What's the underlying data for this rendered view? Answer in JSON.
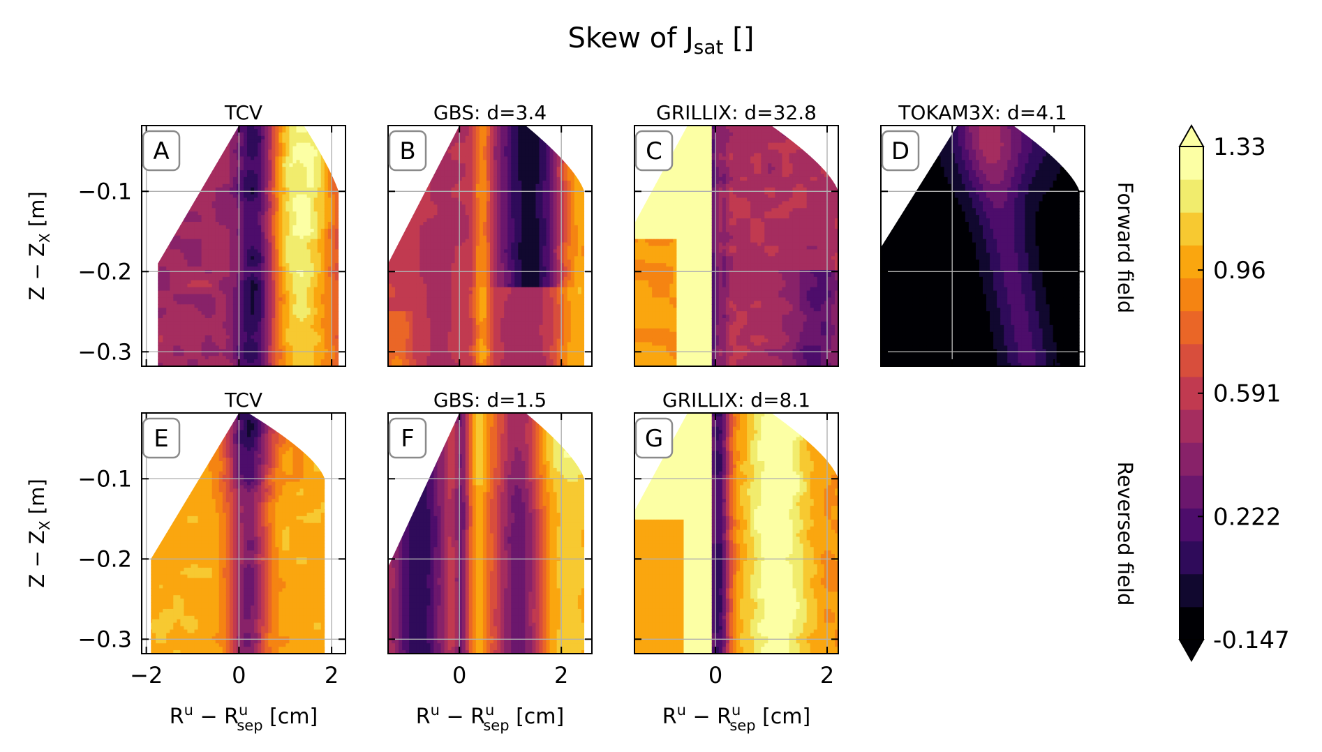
{
  "chart_data": {
    "type": "heatmap",
    "title": "Skew of J",
    "title_sub": "sat",
    "title_unit": " []",
    "colorbar": {
      "colormap": "inferno",
      "levels": 15,
      "min": -0.147,
      "max": 1.33,
      "extend": "both",
      "ticks": [
        {
          "value": 1.33,
          "label": "1.33"
        },
        {
          "value": 0.96,
          "label": "0.96"
        },
        {
          "value": 0.591,
          "label": "0.591"
        },
        {
          "value": 0.222,
          "label": "0.222"
        },
        {
          "value": -0.147,
          "label": "-0.147"
        }
      ]
    },
    "row_labels": [
      "Forward field",
      "Reversed field"
    ],
    "xlabel": {
      "base": "R",
      "sup1": "u",
      "mid": " − R",
      "sup2": "u",
      "sub2": "sep",
      "unit": " [cm]"
    },
    "ylabel": {
      "base": "Z − Z",
      "sub": "X",
      "unit": " [m]"
    },
    "ylim": [
      -0.318,
      -0.018
    ],
    "y_ticks": [
      {
        "value": -0.1,
        "label": "−0.1"
      },
      {
        "value": -0.2,
        "label": "−0.2"
      },
      {
        "value": -0.3,
        "label": "−0.3"
      }
    ],
    "panels": [
      {
        "letter": "A",
        "title": "TCV",
        "row": 0,
        "col": 0,
        "xlim": [
          -2.1,
          2.3
        ],
        "pattern": "tcv_fwd",
        "x_ticks": [
          {
            "value": -2,
            "label": "−2"
          },
          {
            "value": 0,
            "label": "0"
          },
          {
            "value": 2,
            "label": "2"
          }
        ],
        "shape": {
          "top_left": 0.0,
          "top_right": 1.4,
          "tl_drop": -0.19,
          "x_left": -1.75,
          "x_right": 2.15
        }
      },
      {
        "letter": "B",
        "title": "GBS: d=3.4",
        "row": 0,
        "col": 1,
        "xlim": [
          -1.4,
          2.6
        ],
        "pattern": "gbs_fwd",
        "x_ticks": [
          {
            "value": 0,
            "label": "0"
          },
          {
            "value": 2,
            "label": "2"
          }
        ],
        "shape": {
          "top_left": 0.0,
          "top_right": 1.3,
          "tl_drop": -0.19,
          "x_left": -1.4,
          "x_right": 2.45
        }
      },
      {
        "letter": "C",
        "title": "GRILLIX: d=32.8",
        "row": 0,
        "col": 2,
        "xlim": [
          -1.45,
          2.2
        ],
        "pattern": "grillix_fwd",
        "x_ticks": [
          {
            "value": 0,
            "label": "0"
          },
          {
            "value": 2,
            "label": "2"
          }
        ],
        "shape": {
          "top_left": -0.5,
          "top_right": 1.0,
          "tl_drop": -0.14,
          "x_left": -1.45,
          "x_right": 2.2
        }
      },
      {
        "letter": "D",
        "title": "TOKAM3X: d=4.1",
        "row": 0,
        "col": 3,
        "xlim": [
          -1.4,
          2.6
        ],
        "pattern": "tokam3x_fwd",
        "x_ticks": [],
        "shape": {
          "top_left": 0.1,
          "top_right": 1.2,
          "tl_drop": -0.17,
          "x_left": -1.4,
          "x_right": 2.5
        }
      },
      {
        "letter": "E",
        "title": "TCV",
        "row": 1,
        "col": 0,
        "xlim": [
          -2.1,
          2.3
        ],
        "pattern": "tcv_rev",
        "x_ticks": [
          {
            "value": -2,
            "label": "−2"
          },
          {
            "value": 0,
            "label": "0"
          },
          {
            "value": 2,
            "label": "2"
          }
        ],
        "shape": {
          "top_left": 0.0,
          "top_right": 0.2,
          "tl_drop": -0.2,
          "x_left": -1.9,
          "x_right": 1.85
        }
      },
      {
        "letter": "F",
        "title": "GBS: d=1.5",
        "row": 1,
        "col": 1,
        "xlim": [
          -1.4,
          2.6
        ],
        "pattern": "gbs_rev",
        "x_ticks": [
          {
            "value": 0,
            "label": "0"
          },
          {
            "value": 2,
            "label": "2"
          }
        ],
        "shape": {
          "top_left": 0.0,
          "top_right": 1.3,
          "tl_drop": -0.21,
          "x_left": -1.4,
          "x_right": 2.45
        }
      },
      {
        "letter": "G",
        "title": "GRILLIX: d=8.1",
        "row": 1,
        "col": 2,
        "xlim": [
          -1.45,
          2.2
        ],
        "pattern": "grillix_rev",
        "x_ticks": [
          {
            "value": 0,
            "label": "0"
          },
          {
            "value": 2,
            "label": "2"
          }
        ],
        "shape": {
          "top_left": -0.5,
          "top_right": 1.0,
          "tl_drop": -0.14,
          "x_left": -1.45,
          "x_right": 2.2
        }
      }
    ]
  }
}
